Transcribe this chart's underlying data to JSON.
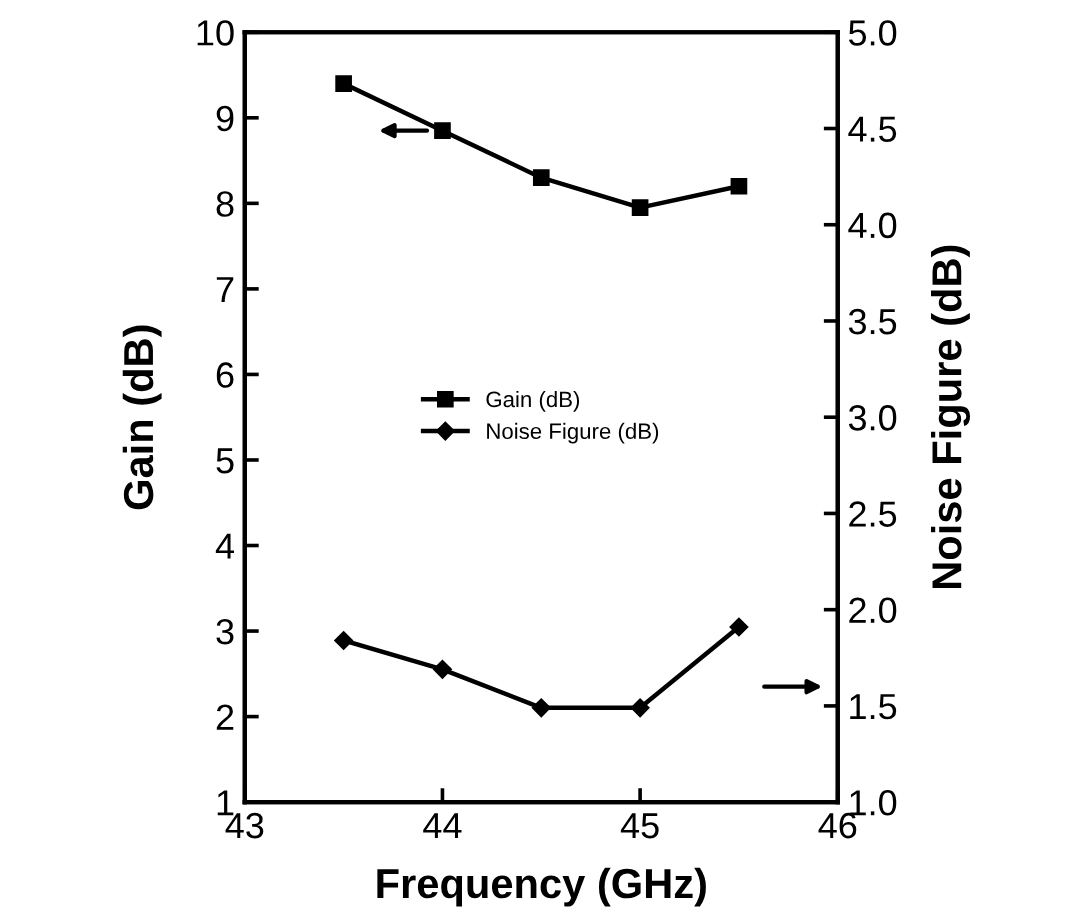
{
  "chart_data": {
    "type": "line",
    "xlabel": "Frequency (GHz)",
    "ylabel": "Gain (dB)",
    "y2label": "Noise Figure (dB)",
    "x": [
      43.5,
      44,
      44.5,
      45,
      45.5
    ],
    "series": [
      {
        "name": "Gain (dB)",
        "color": "#000000",
        "marker": "square",
        "values": [
          9.4,
          8.85,
          8.3,
          7.95,
          8.2
        ]
      },
      {
        "name": "Noise Figure (dB)",
        "color": "#000000",
        "marker": "diamond",
        "axis": "y2",
        "values": [
          1.84,
          1.69,
          1.49,
          1.49,
          1.91
        ]
      }
    ],
    "xlim": [
      43,
      46
    ],
    "xticks": [
      43,
      44,
      45,
      46
    ],
    "ylim": [
      1,
      10
    ],
    "yticks": [
      1,
      2,
      3,
      4,
      5,
      6,
      7,
      8,
      9,
      10
    ],
    "y2lim": [
      1.0,
      5.0
    ],
    "y2ticks": [
      {
        "value": 1.0,
        "label": "1.0"
      },
      1.5,
      {
        "value": 2.0,
        "label": "2.0"
      },
      2.5,
      {
        "value": 3.0,
        "label": "3.0"
      },
      3.5,
      {
        "value": 4.0,
        "label": "4.0"
      },
      4.5,
      {
        "value": 5.0,
        "label": "5.0"
      }
    ],
    "legend": "center",
    "grid": false,
    "line_style": "solid"
  }
}
